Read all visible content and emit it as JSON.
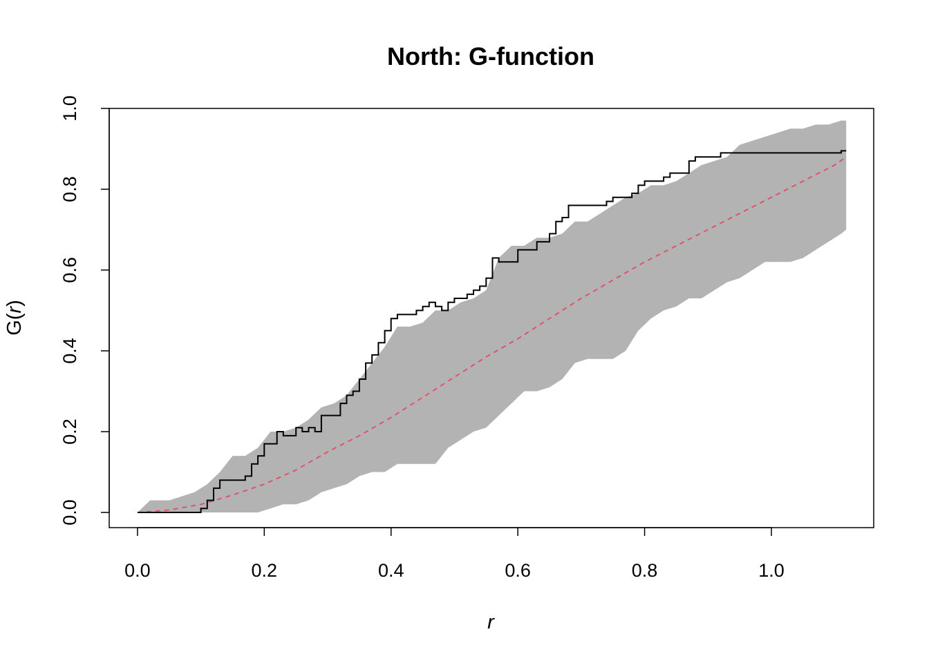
{
  "chart_data": {
    "type": "line",
    "title": "North: G-function",
    "xlabel": "r",
    "ylabel_parts": [
      "G(",
      "r",
      ")"
    ],
    "xlim": [
      -0.0446,
      1.1614
    ],
    "ylim": [
      -0.0376,
      1.0
    ],
    "x_ticks": [
      0.0,
      0.2,
      0.4,
      0.6,
      0.8,
      1.0
    ],
    "x_tick_labels": [
      "0.0",
      "0.2",
      "0.4",
      "0.6",
      "0.8",
      "1.0"
    ],
    "y_ticks": [
      0.0,
      0.2,
      0.4,
      0.6,
      0.8,
      1.0
    ],
    "y_tick_labels": [
      "0.0",
      "0.2",
      "0.4",
      "0.6",
      "0.8",
      "1.0"
    ],
    "grid": false,
    "legend": "none",
    "colors": {
      "envelope": "#b3b3b3",
      "observed": "#000000",
      "theoretical": "#df536b"
    },
    "envelope": {
      "x": [
        0.0,
        0.02,
        0.05,
        0.07,
        0.09,
        0.11,
        0.13,
        0.15,
        0.17,
        0.19,
        0.21,
        0.23,
        0.25,
        0.27,
        0.29,
        0.31,
        0.33,
        0.35,
        0.37,
        0.39,
        0.41,
        0.43,
        0.45,
        0.47,
        0.49,
        0.51,
        0.53,
        0.55,
        0.57,
        0.59,
        0.61,
        0.63,
        0.65,
        0.67,
        0.69,
        0.71,
        0.73,
        0.75,
        0.77,
        0.79,
        0.81,
        0.83,
        0.85,
        0.87,
        0.89,
        0.91,
        0.93,
        0.95,
        0.97,
        0.99,
        1.01,
        1.03,
        1.05,
        1.07,
        1.09,
        1.11,
        1.118
      ],
      "lo": [
        0.0,
        0.0,
        0.0,
        0.0,
        0.0,
        0.0,
        0.0,
        0.0,
        0.0,
        0.0,
        0.01,
        0.02,
        0.02,
        0.03,
        0.05,
        0.06,
        0.07,
        0.09,
        0.1,
        0.1,
        0.12,
        0.12,
        0.12,
        0.12,
        0.16,
        0.18,
        0.2,
        0.21,
        0.24,
        0.27,
        0.3,
        0.3,
        0.31,
        0.33,
        0.37,
        0.38,
        0.38,
        0.38,
        0.4,
        0.45,
        0.48,
        0.5,
        0.51,
        0.53,
        0.53,
        0.55,
        0.57,
        0.58,
        0.6,
        0.62,
        0.62,
        0.62,
        0.63,
        0.65,
        0.67,
        0.69,
        0.7
      ],
      "hi": [
        0.0,
        0.03,
        0.03,
        0.04,
        0.05,
        0.07,
        0.1,
        0.14,
        0.14,
        0.16,
        0.2,
        0.2,
        0.21,
        0.23,
        0.26,
        0.27,
        0.29,
        0.33,
        0.37,
        0.41,
        0.46,
        0.46,
        0.47,
        0.5,
        0.5,
        0.52,
        0.53,
        0.55,
        0.63,
        0.66,
        0.66,
        0.68,
        0.68,
        0.69,
        0.72,
        0.72,
        0.74,
        0.76,
        0.78,
        0.79,
        0.81,
        0.81,
        0.82,
        0.84,
        0.86,
        0.87,
        0.88,
        0.91,
        0.92,
        0.93,
        0.94,
        0.95,
        0.95,
        0.96,
        0.96,
        0.97,
        0.97
      ]
    },
    "observed": {
      "x": [
        0.0,
        0.09,
        0.1,
        0.11,
        0.12,
        0.13,
        0.15,
        0.17,
        0.18,
        0.19,
        0.2,
        0.22,
        0.23,
        0.25,
        0.26,
        0.27,
        0.28,
        0.29,
        0.31,
        0.32,
        0.33,
        0.34,
        0.35,
        0.36,
        0.37,
        0.38,
        0.39,
        0.4,
        0.41,
        0.43,
        0.44,
        0.45,
        0.46,
        0.47,
        0.48,
        0.49,
        0.5,
        0.52,
        0.53,
        0.54,
        0.55,
        0.56,
        0.57,
        0.58,
        0.6,
        0.61,
        0.63,
        0.65,
        0.66,
        0.67,
        0.68,
        0.7,
        0.71,
        0.74,
        0.75,
        0.78,
        0.79,
        0.8,
        0.82,
        0.83,
        0.84,
        0.86,
        0.87,
        0.88,
        0.9,
        0.92,
        0.93,
        0.95,
        0.98,
        1.0,
        1.02,
        1.03,
        1.05,
        1.08,
        1.11,
        1.118
      ],
      "y": [
        0.0,
        0.0,
        0.01,
        0.03,
        0.06,
        0.08,
        0.08,
        0.09,
        0.12,
        0.14,
        0.17,
        0.2,
        0.19,
        0.21,
        0.2,
        0.21,
        0.2,
        0.24,
        0.24,
        0.27,
        0.29,
        0.3,
        0.33,
        0.37,
        0.39,
        0.42,
        0.45,
        0.48,
        0.49,
        0.49,
        0.5,
        0.51,
        0.52,
        0.51,
        0.5,
        0.52,
        0.53,
        0.54,
        0.55,
        0.56,
        0.58,
        0.63,
        0.62,
        0.62,
        0.65,
        0.65,
        0.67,
        0.69,
        0.72,
        0.73,
        0.76,
        0.76,
        0.76,
        0.77,
        0.78,
        0.79,
        0.81,
        0.82,
        0.82,
        0.83,
        0.84,
        0.84,
        0.87,
        0.88,
        0.88,
        0.89,
        0.89,
        0.89,
        0.89,
        0.89,
        0.89,
        0.89,
        0.89,
        0.89,
        0.895,
        0.895
      ]
    },
    "theoretical": {
      "x": [
        0.0,
        0.05,
        0.1,
        0.15,
        0.2,
        0.25,
        0.3,
        0.35,
        0.4,
        0.45,
        0.5,
        0.55,
        0.6,
        0.65,
        0.7,
        0.75,
        0.8,
        0.85,
        0.9,
        0.95,
        1.0,
        1.05,
        1.1,
        1.118
      ],
      "y": [
        0.0,
        0.006,
        0.02,
        0.043,
        0.07,
        0.105,
        0.15,
        0.19,
        0.235,
        0.285,
        0.335,
        0.385,
        0.43,
        0.48,
        0.53,
        0.575,
        0.62,
        0.66,
        0.7,
        0.74,
        0.78,
        0.82,
        0.86,
        0.88
      ]
    }
  }
}
